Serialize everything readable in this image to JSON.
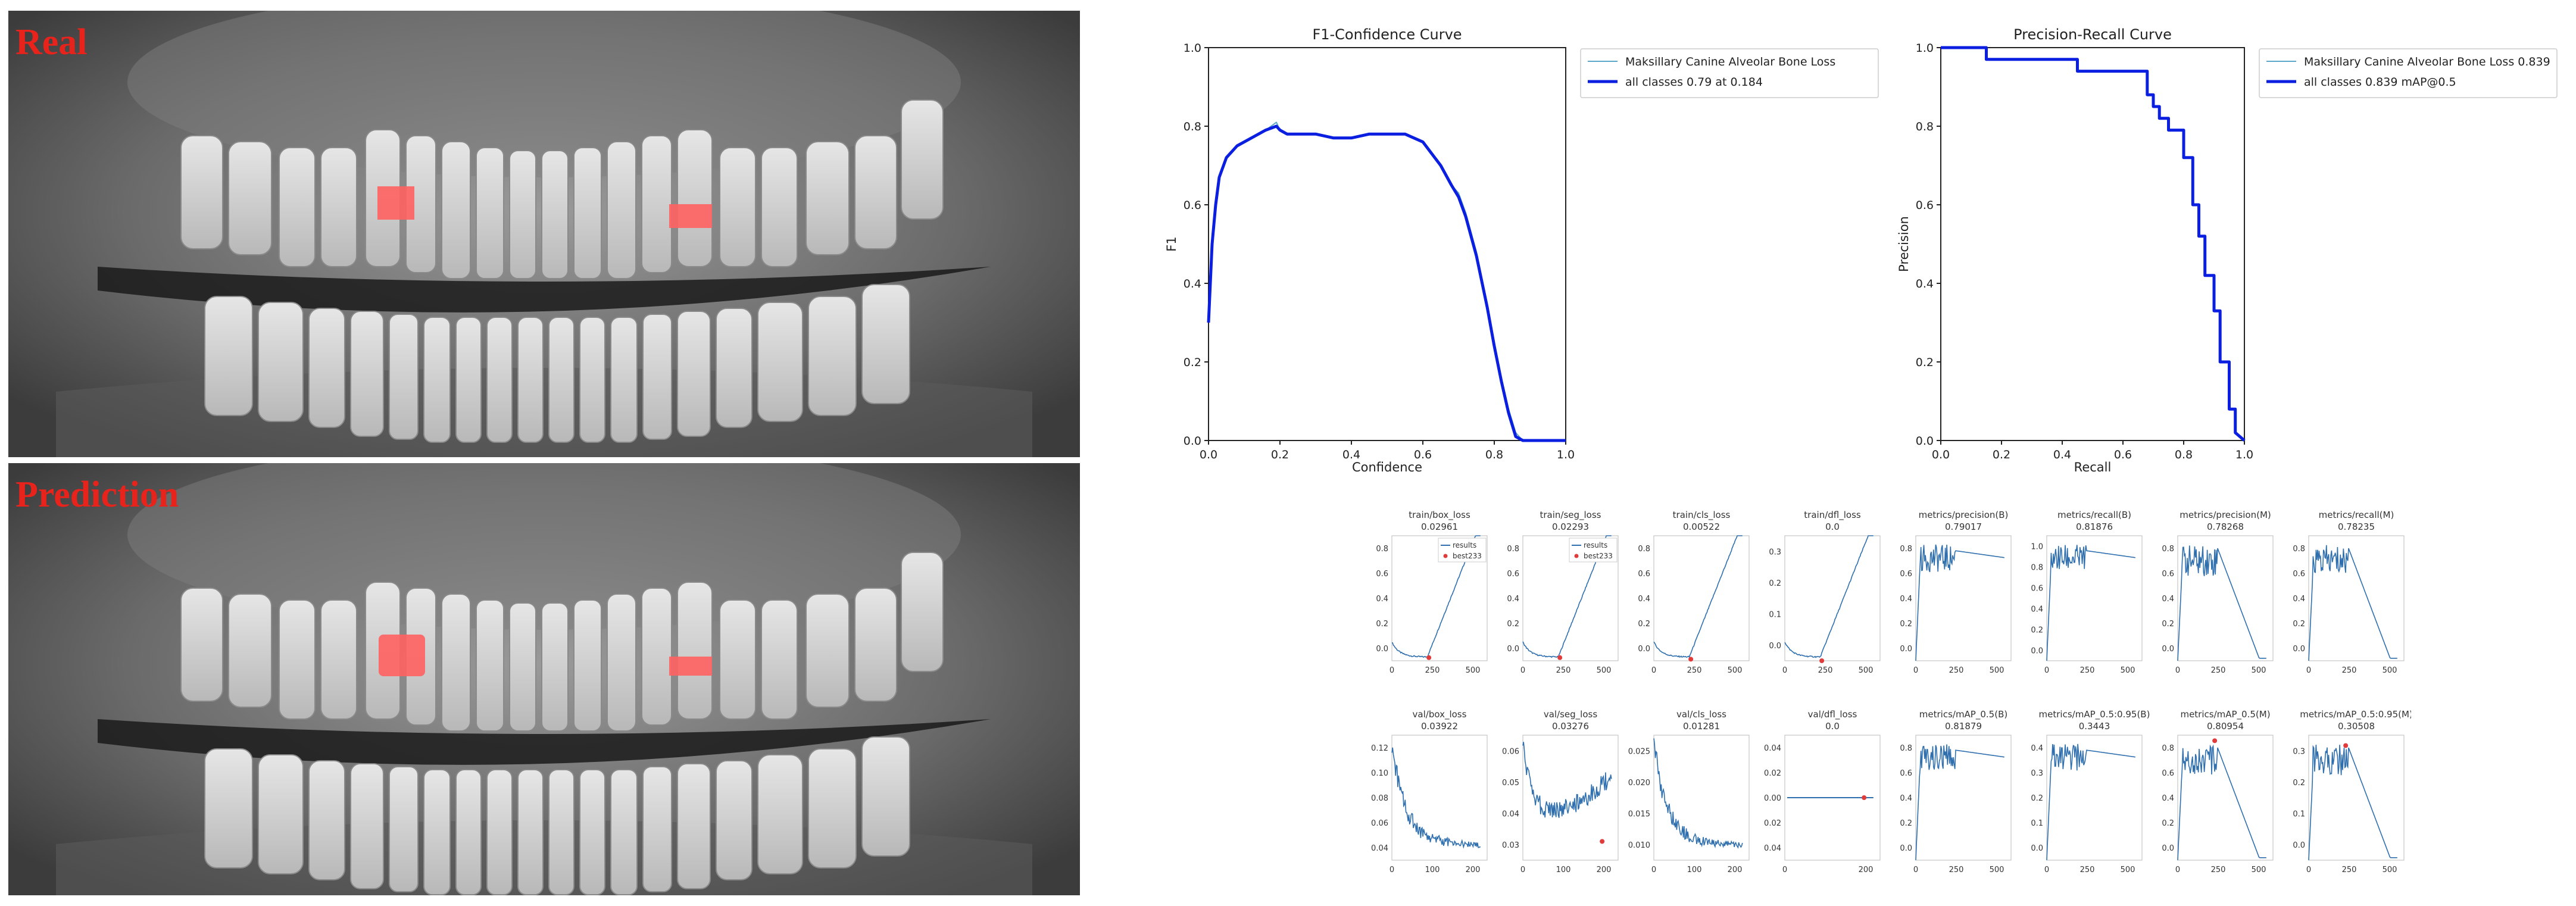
{
  "panels": {
    "real_label": "Real",
    "prediction_label": "Prediction"
  },
  "colors": {
    "annotation": "#ff6060",
    "label_text": "#e8231c",
    "class_line": "#5aa7c7",
    "all_classes_line": "#0a1fe0",
    "metric_line": "#2f6fae",
    "best_marker": "#e03c3c"
  },
  "chart_data": [
    {
      "type": "line",
      "title": "F1-Confidence Curve",
      "xlabel": "Confidence",
      "ylabel": "F1",
      "xlim": [
        0,
        1
      ],
      "ylim": [
        0,
        1
      ],
      "xticks": [
        "0.0",
        "0.2",
        "0.4",
        "0.6",
        "0.8",
        "1.0"
      ],
      "yticks": [
        "0.0",
        "0.2",
        "0.4",
        "0.6",
        "0.8",
        "1.0"
      ],
      "legend": "top-right",
      "series": [
        {
          "name": "Maksillary Canine Alveolar Bone Loss",
          "color": "#5aa7c7",
          "x": [
            0,
            0.01,
            0.02,
            0.03,
            0.05,
            0.08,
            0.12,
            0.16,
            0.19,
            0.2,
            0.22,
            0.25,
            0.3,
            0.35,
            0.4,
            0.45,
            0.5,
            0.55,
            0.6,
            0.65,
            0.68,
            0.7,
            0.72,
            0.75,
            0.78,
            0.8,
            0.82,
            0.84,
            0.86,
            0.88,
            0.9,
            1.0
          ],
          "y": [
            0.3,
            0.5,
            0.6,
            0.67,
            0.72,
            0.75,
            0.77,
            0.79,
            0.81,
            0.79,
            0.78,
            0.78,
            0.78,
            0.77,
            0.77,
            0.78,
            0.78,
            0.78,
            0.76,
            0.7,
            0.65,
            0.63,
            0.58,
            0.48,
            0.35,
            0.25,
            0.16,
            0.08,
            0.02,
            0,
            0,
            0
          ]
        },
        {
          "name": "all classes 0.79 at 0.184",
          "color": "#0a1fe0",
          "x": [
            0,
            0.01,
            0.02,
            0.03,
            0.05,
            0.08,
            0.12,
            0.16,
            0.19,
            0.2,
            0.22,
            0.25,
            0.3,
            0.35,
            0.4,
            0.45,
            0.5,
            0.55,
            0.6,
            0.65,
            0.68,
            0.7,
            0.72,
            0.75,
            0.78,
            0.8,
            0.82,
            0.84,
            0.86,
            0.88,
            0.9,
            1.0
          ],
          "y": [
            0.3,
            0.5,
            0.6,
            0.67,
            0.72,
            0.75,
            0.77,
            0.79,
            0.8,
            0.79,
            0.78,
            0.78,
            0.78,
            0.77,
            0.77,
            0.78,
            0.78,
            0.78,
            0.76,
            0.7,
            0.65,
            0.62,
            0.57,
            0.47,
            0.34,
            0.24,
            0.15,
            0.07,
            0.01,
            0,
            0,
            0
          ]
        }
      ]
    },
    {
      "type": "line",
      "title": "Precision-Recall Curve",
      "xlabel": "Recall",
      "ylabel": "Precision",
      "xlim": [
        0,
        1
      ],
      "ylim": [
        0,
        1
      ],
      "xticks": [
        "0.0",
        "0.2",
        "0.4",
        "0.6",
        "0.8",
        "1.0"
      ],
      "yticks": [
        "0.0",
        "0.2",
        "0.4",
        "0.6",
        "0.8",
        "1.0"
      ],
      "legend": "top-right",
      "series": [
        {
          "name": "Maksillary Canine Alveolar Bone Loss  0.839",
          "color": "#5aa7c7",
          "x": [
            0,
            0.15,
            0.15,
            0.45,
            0.45,
            0.68,
            0.68,
            0.7,
            0.7,
            0.72,
            0.72,
            0.75,
            0.75,
            0.8,
            0.8,
            0.83,
            0.83,
            0.85,
            0.85,
            0.87,
            0.87,
            0.9,
            0.9,
            0.92,
            0.92,
            0.95,
            0.95,
            0.97,
            0.97,
            1.0
          ],
          "y": [
            1,
            1,
            0.97,
            0.97,
            0.94,
            0.94,
            0.88,
            0.88,
            0.85,
            0.85,
            0.82,
            0.82,
            0.79,
            0.79,
            0.72,
            0.72,
            0.6,
            0.6,
            0.52,
            0.52,
            0.42,
            0.42,
            0.33,
            0.33,
            0.2,
            0.2,
            0.08,
            0.08,
            0.02,
            0.0
          ]
        },
        {
          "name": "all classes 0.839 mAP@0.5",
          "color": "#0a1fe0",
          "x": [
            0,
            0.15,
            0.15,
            0.45,
            0.45,
            0.68,
            0.68,
            0.7,
            0.7,
            0.72,
            0.72,
            0.75,
            0.75,
            0.8,
            0.8,
            0.83,
            0.83,
            0.85,
            0.85,
            0.87,
            0.87,
            0.9,
            0.9,
            0.92,
            0.92,
            0.95,
            0.95,
            0.97,
            0.97,
            1.0
          ],
          "y": [
            1,
            1,
            0.97,
            0.97,
            0.94,
            0.94,
            0.88,
            0.88,
            0.85,
            0.85,
            0.82,
            0.82,
            0.79,
            0.79,
            0.72,
            0.72,
            0.6,
            0.6,
            0.52,
            0.52,
            0.42,
            0.42,
            0.33,
            0.33,
            0.2,
            0.2,
            0.08,
            0.08,
            0.02,
            0.0
          ]
        }
      ]
    }
  ],
  "metrics_grid": [
    {
      "title": "train/box_loss",
      "value": "0.02961",
      "yticks": [
        "0.0",
        "0.2",
        "0.4",
        "0.6",
        "0.8"
      ],
      "ylim": [
        0,
        0.8
      ],
      "xticks": [
        "0",
        "250",
        "500"
      ],
      "xlim": [
        0,
        600
      ],
      "shape": "train",
      "legend": [
        "results",
        "best233"
      ],
      "best": [
        233,
        0.02
      ]
    },
    {
      "title": "train/seg_loss",
      "value": "0.02293",
      "yticks": [
        "0.0",
        "0.2",
        "0.4",
        "0.6",
        "0.8"
      ],
      "ylim": [
        0,
        0.8
      ],
      "xticks": [
        "0",
        "250",
        "500"
      ],
      "xlim": [
        0,
        600
      ],
      "shape": "train",
      "legend": [
        "results",
        "best233"
      ],
      "best": [
        233,
        0.02
      ]
    },
    {
      "title": "train/cls_loss",
      "value": "0.00522",
      "yticks": [
        "0.0",
        "0.2",
        "0.4",
        "0.6",
        "0.8"
      ],
      "ylim": [
        0,
        0.8
      ],
      "xticks": [
        "0",
        "250",
        "500"
      ],
      "xlim": [
        0,
        600
      ],
      "shape": "train",
      "best": [
        233,
        0.01
      ]
    },
    {
      "title": "train/dfl_loss",
      "value": "0.0",
      "yticks": [
        "0.0",
        "0.1",
        "0.2",
        "0.3"
      ],
      "ylim": [
        0,
        0.35
      ],
      "xticks": [
        "0",
        "250",
        "500"
      ],
      "xlim": [
        0,
        600
      ],
      "shape": "train",
      "best": [
        233,
        0.0
      ]
    },
    {
      "title": "metrics/precision(B)",
      "value": "0.79017",
      "yticks": [
        "0.0",
        "0.2",
        "0.4",
        "0.6",
        "0.8"
      ],
      "ylim": [
        0,
        0.9
      ],
      "xticks": [
        "0",
        "250",
        "500"
      ],
      "xlim": [
        0,
        600
      ],
      "shape": "metric_flat"
    },
    {
      "title": "metrics/recall(B)",
      "value": "0.81876",
      "yticks": [
        "0.0",
        "0.2",
        "0.4",
        "0.6",
        "0.8",
        "1.0"
      ],
      "ylim": [
        0,
        1
      ],
      "xticks": [
        "0",
        "250",
        "500"
      ],
      "xlim": [
        0,
        600
      ],
      "shape": "metric_flat"
    },
    {
      "title": "metrics/precision(M)",
      "value": "0.78268",
      "yticks": [
        "0.0",
        "0.2",
        "0.4",
        "0.6",
        "0.8"
      ],
      "ylim": [
        0,
        0.9
      ],
      "xticks": [
        "0",
        "250",
        "500"
      ],
      "xlim": [
        0,
        600
      ],
      "shape": "metric_drop"
    },
    {
      "title": "metrics/recall(M)",
      "value": "0.78235",
      "yticks": [
        "0.0",
        "0.2",
        "0.4",
        "0.6",
        "0.8"
      ],
      "ylim": [
        0,
        0.9
      ],
      "xticks": [
        "0",
        "250",
        "500"
      ],
      "xlim": [
        0,
        600
      ],
      "shape": "metric_drop"
    },
    {
      "title": "val/box_loss",
      "value": "0.03922",
      "yticks": [
        "0.04",
        "0.06",
        "0.08",
        "0.10",
        "0.12"
      ],
      "ylim": [
        0.035,
        0.125
      ],
      "xticks": [
        "0",
        "100",
        "200"
      ],
      "xlim": [
        0,
        280
      ],
      "shape": "val_decay"
    },
    {
      "title": "val/seg_loss",
      "value": "0.03276",
      "yticks": [
        "0.03",
        "0.04",
        "0.05",
        "0.06"
      ],
      "ylim": [
        0.025,
        0.065
      ],
      "xticks": [
        "0",
        "100",
        "200"
      ],
      "xlim": [
        0,
        280
      ],
      "shape": "val_u",
      "best": [
        233,
        0.031
      ]
    },
    {
      "title": "val/cls_loss",
      "value": "0.01281",
      "yticks": [
        "0.010",
        "0.015",
        "0.020",
        "0.025"
      ],
      "ylim": [
        0.01,
        0.028
      ],
      "xticks": [
        "0",
        "100",
        "200"
      ],
      "xlim": [
        0,
        280
      ],
      "shape": "val_decay"
    },
    {
      "title": "val/dfl_loss",
      "value": "0.0",
      "yticks": [
        "0.04",
        "0.02",
        "0.00",
        "0.02",
        "0.04"
      ],
      "ylim": [
        -0.05,
        0.05
      ],
      "xticks": [
        "0",
        "200"
      ],
      "xlim": [
        0,
        280
      ],
      "shape": "flat_zero",
      "best": [
        233,
        0.0
      ]
    },
    {
      "title": "metrics/mAP_0.5(B)",
      "value": "0.81879",
      "yticks": [
        "0.0",
        "0.2",
        "0.4",
        "0.6",
        "0.8"
      ],
      "ylim": [
        0,
        0.9
      ],
      "xticks": [
        "0",
        "250",
        "500"
      ],
      "xlim": [
        0,
        600
      ],
      "shape": "metric_flat"
    },
    {
      "title": "metrics/mAP_0.5:0.95(B)",
      "value": "0.3443",
      "yticks": [
        "0.0",
        "0.1",
        "0.2",
        "0.3",
        "0.4"
      ],
      "ylim": [
        0,
        0.4
      ],
      "xticks": [
        "0",
        "250",
        "500"
      ],
      "xlim": [
        0,
        600
      ],
      "shape": "metric_flat"
    },
    {
      "title": "metrics/mAP_0.5(M)",
      "value": "0.80954",
      "yticks": [
        "0.0",
        "0.2",
        "0.4",
        "0.6",
        "0.8"
      ],
      "ylim": [
        0,
        0.9
      ],
      "xticks": [
        "0",
        "250",
        "500"
      ],
      "xlim": [
        0,
        600
      ],
      "shape": "metric_drop",
      "best": [
        233,
        0.86
      ]
    },
    {
      "title": "metrics/mAP_0.5:0.95(M)",
      "value": "0.30508",
      "yticks": [
        "0.0",
        "0.1",
        "0.2",
        "0.3"
      ],
      "ylim": [
        0,
        0.36
      ],
      "xticks": [
        "0",
        "250",
        "500"
      ],
      "xlim": [
        0,
        600
      ],
      "shape": "metric_drop",
      "best": [
        233,
        0.33
      ]
    }
  ]
}
